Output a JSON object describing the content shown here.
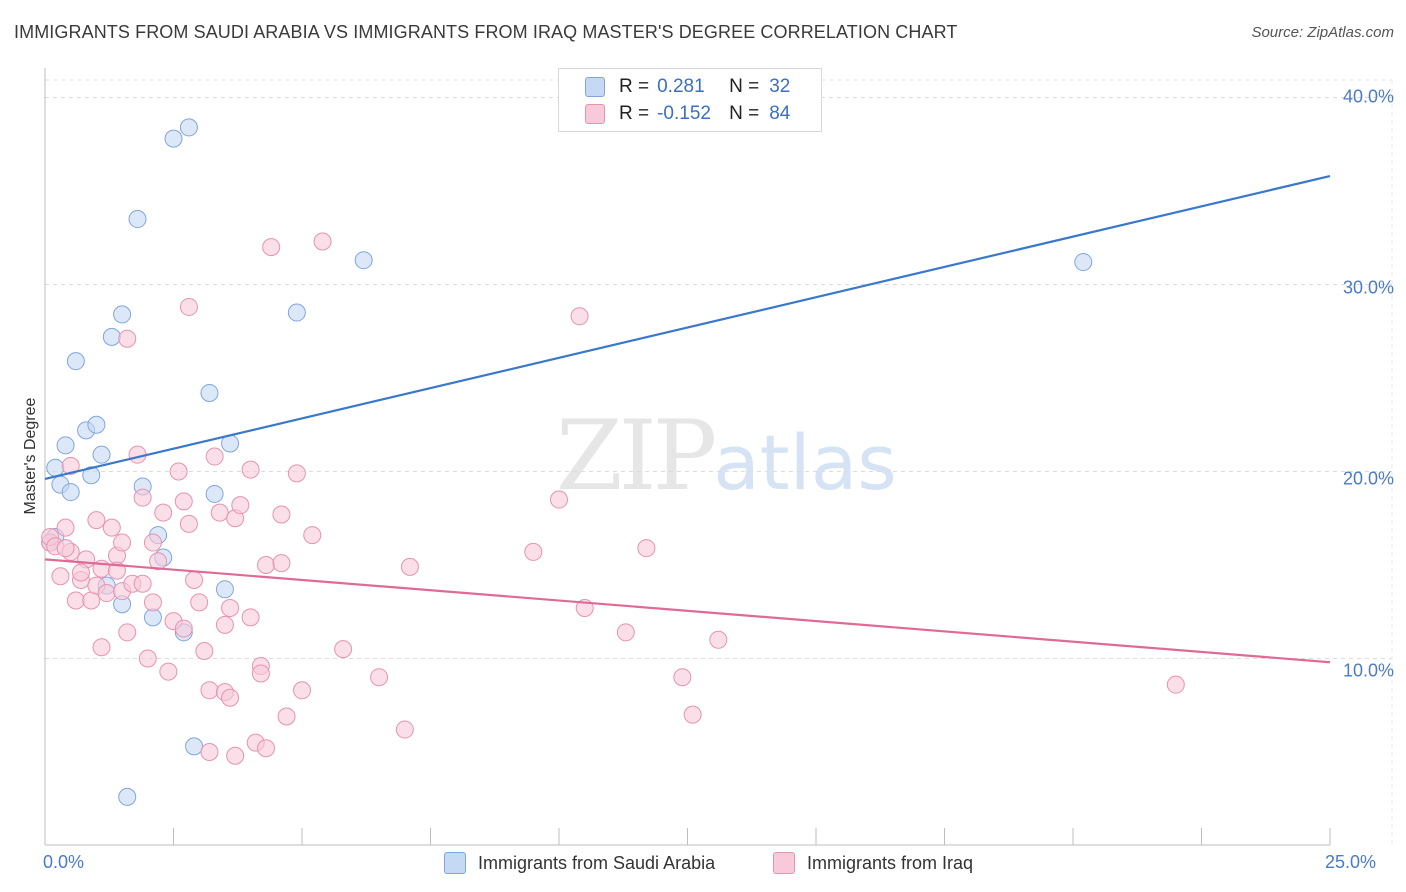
{
  "title": "IMMIGRANTS FROM SAUDI ARABIA VS IMMIGRANTS FROM IRAQ MASTER'S DEGREE CORRELATION CHART",
  "source": "Source: ZipAtlas.com",
  "watermark": {
    "zip": "ZIP",
    "atlas": "atlas"
  },
  "legend": {
    "series1": {
      "r_label": "R =",
      "r_value": "0.281",
      "n_label": "N =",
      "n_value": "32"
    },
    "series2": {
      "r_label": "R =",
      "r_value": "-0.152",
      "n_label": "N =",
      "n_value": "84"
    }
  },
  "chart_data": {
    "type": "scatter",
    "title": "IMMIGRANTS FROM SAUDI ARABIA VS IMMIGRANTS FROM IRAQ MASTER'S DEGREE CORRELATION CHART",
    "xlabel": "",
    "ylabel": "Master's Degree",
    "xlim": [
      0,
      25
    ],
    "ylim": [
      0,
      40
    ],
    "x_tick_labels": [
      "0.0%",
      "25.0%"
    ],
    "y_ticks": [
      10,
      20,
      30,
      40
    ],
    "y_tick_labels": [
      "10.0%",
      "20.0%",
      "30.0%",
      "40.0%"
    ],
    "grid": true,
    "colors": {
      "saudi_fill": "#c5d9f4",
      "saudi_stroke": "#7fa6dc",
      "saudi_line": "#3a78cc",
      "iraq_fill": "#f8c9d8",
      "iraq_stroke": "#e693b0",
      "iraq_line": "#e06a96"
    },
    "series": [
      {
        "name": "Immigrants from Saudi Arabia",
        "trend": {
          "x": [
            0,
            25
          ],
          "y": [
            19.6,
            35.8
          ]
        },
        "points": [
          [
            0.2,
            16.5
          ],
          [
            0.2,
            20.2
          ],
          [
            0.3,
            19.3
          ],
          [
            0.4,
            21.4
          ],
          [
            0.5,
            18.9
          ],
          [
            0.6,
            25.9
          ],
          [
            0.8,
            22.2
          ],
          [
            0.9,
            19.8
          ],
          [
            1.0,
            22.5
          ],
          [
            1.1,
            20.9
          ],
          [
            1.2,
            13.9
          ],
          [
            1.3,
            27.2
          ],
          [
            1.5,
            28.4
          ],
          [
            1.5,
            12.9
          ],
          [
            1.6,
            2.6
          ],
          [
            1.8,
            33.5
          ],
          [
            1.9,
            19.2
          ],
          [
            2.1,
            12.2
          ],
          [
            2.2,
            16.6
          ],
          [
            2.3,
            15.4
          ],
          [
            2.5,
            37.8
          ],
          [
            2.7,
            11.4
          ],
          [
            2.8,
            38.4
          ],
          [
            2.9,
            5.3
          ],
          [
            3.2,
            24.2
          ],
          [
            3.3,
            18.8
          ],
          [
            3.5,
            13.7
          ],
          [
            3.6,
            21.5
          ],
          [
            4.9,
            28.5
          ],
          [
            6.2,
            31.3
          ],
          [
            20.2,
            31.2
          ],
          [
            0.1,
            16.2
          ]
        ]
      },
      {
        "name": "Immigrants from Iraq",
        "trend": {
          "x": [
            0,
            25
          ],
          "y": [
            15.3,
            9.8
          ]
        },
        "points": [
          [
            0.1,
            16.2
          ],
          [
            0.1,
            16.5
          ],
          [
            0.2,
            16.0
          ],
          [
            0.3,
            14.4
          ],
          [
            0.4,
            17.0
          ],
          [
            0.5,
            15.7
          ],
          [
            0.5,
            20.3
          ],
          [
            0.6,
            13.1
          ],
          [
            0.7,
            14.2
          ],
          [
            0.8,
            15.3
          ],
          [
            0.9,
            13.1
          ],
          [
            1.0,
            13.9
          ],
          [
            1.0,
            17.4
          ],
          [
            1.1,
            14.8
          ],
          [
            1.1,
            10.6
          ],
          [
            1.2,
            13.5
          ],
          [
            1.3,
            17.0
          ],
          [
            1.4,
            15.5
          ],
          [
            1.4,
            14.7
          ],
          [
            1.5,
            13.6
          ],
          [
            1.5,
            16.2
          ],
          [
            1.6,
            11.4
          ],
          [
            1.6,
            27.1
          ],
          [
            1.7,
            14.0
          ],
          [
            1.8,
            20.9
          ],
          [
            1.9,
            14.0
          ],
          [
            1.9,
            18.6
          ],
          [
            2.0,
            10.0
          ],
          [
            2.1,
            13.0
          ],
          [
            2.1,
            16.2
          ],
          [
            2.2,
            15.2
          ],
          [
            2.3,
            17.8
          ],
          [
            2.4,
            9.3
          ],
          [
            2.5,
            12.0
          ],
          [
            2.6,
            20.0
          ],
          [
            2.7,
            18.4
          ],
          [
            2.7,
            11.6
          ],
          [
            2.8,
            28.8
          ],
          [
            2.8,
            17.2
          ],
          [
            2.9,
            14.2
          ],
          [
            3.0,
            13.0
          ],
          [
            3.1,
            10.4
          ],
          [
            3.2,
            5.0
          ],
          [
            3.2,
            8.3
          ],
          [
            3.3,
            20.8
          ],
          [
            3.4,
            17.8
          ],
          [
            3.5,
            11.8
          ],
          [
            3.5,
            8.2
          ],
          [
            3.6,
            12.7
          ],
          [
            3.6,
            7.9
          ],
          [
            3.7,
            17.5
          ],
          [
            3.7,
            4.8
          ],
          [
            3.8,
            18.2
          ],
          [
            4.0,
            20.1
          ],
          [
            4.0,
            12.2
          ],
          [
            4.1,
            5.5
          ],
          [
            4.2,
            9.6
          ],
          [
            4.2,
            9.2
          ],
          [
            4.3,
            5.2
          ],
          [
            4.3,
            15.0
          ],
          [
            4.4,
            32.0
          ],
          [
            4.6,
            15.1
          ],
          [
            4.6,
            17.7
          ],
          [
            4.7,
            6.9
          ],
          [
            4.9,
            19.9
          ],
          [
            5.0,
            8.3
          ],
          [
            5.2,
            16.6
          ],
          [
            5.4,
            32.3
          ],
          [
            5.8,
            10.5
          ],
          [
            6.5,
            9.0
          ],
          [
            7.0,
            6.2
          ],
          [
            7.1,
            14.9
          ],
          [
            9.5,
            15.7
          ],
          [
            10.0,
            18.5
          ],
          [
            10.4,
            28.3
          ],
          [
            10.5,
            12.7
          ],
          [
            11.3,
            11.4
          ],
          [
            11.7,
            15.9
          ],
          [
            12.4,
            9.0
          ],
          [
            12.6,
            7.0
          ],
          [
            13.1,
            11.0
          ],
          [
            22.0,
            8.6
          ],
          [
            0.4,
            15.9
          ],
          [
            0.7,
            14.6
          ]
        ]
      }
    ]
  },
  "bottom_legend": {
    "item1": "Immigrants from Saudi Arabia",
    "item2": "Immigrants from Iraq"
  }
}
